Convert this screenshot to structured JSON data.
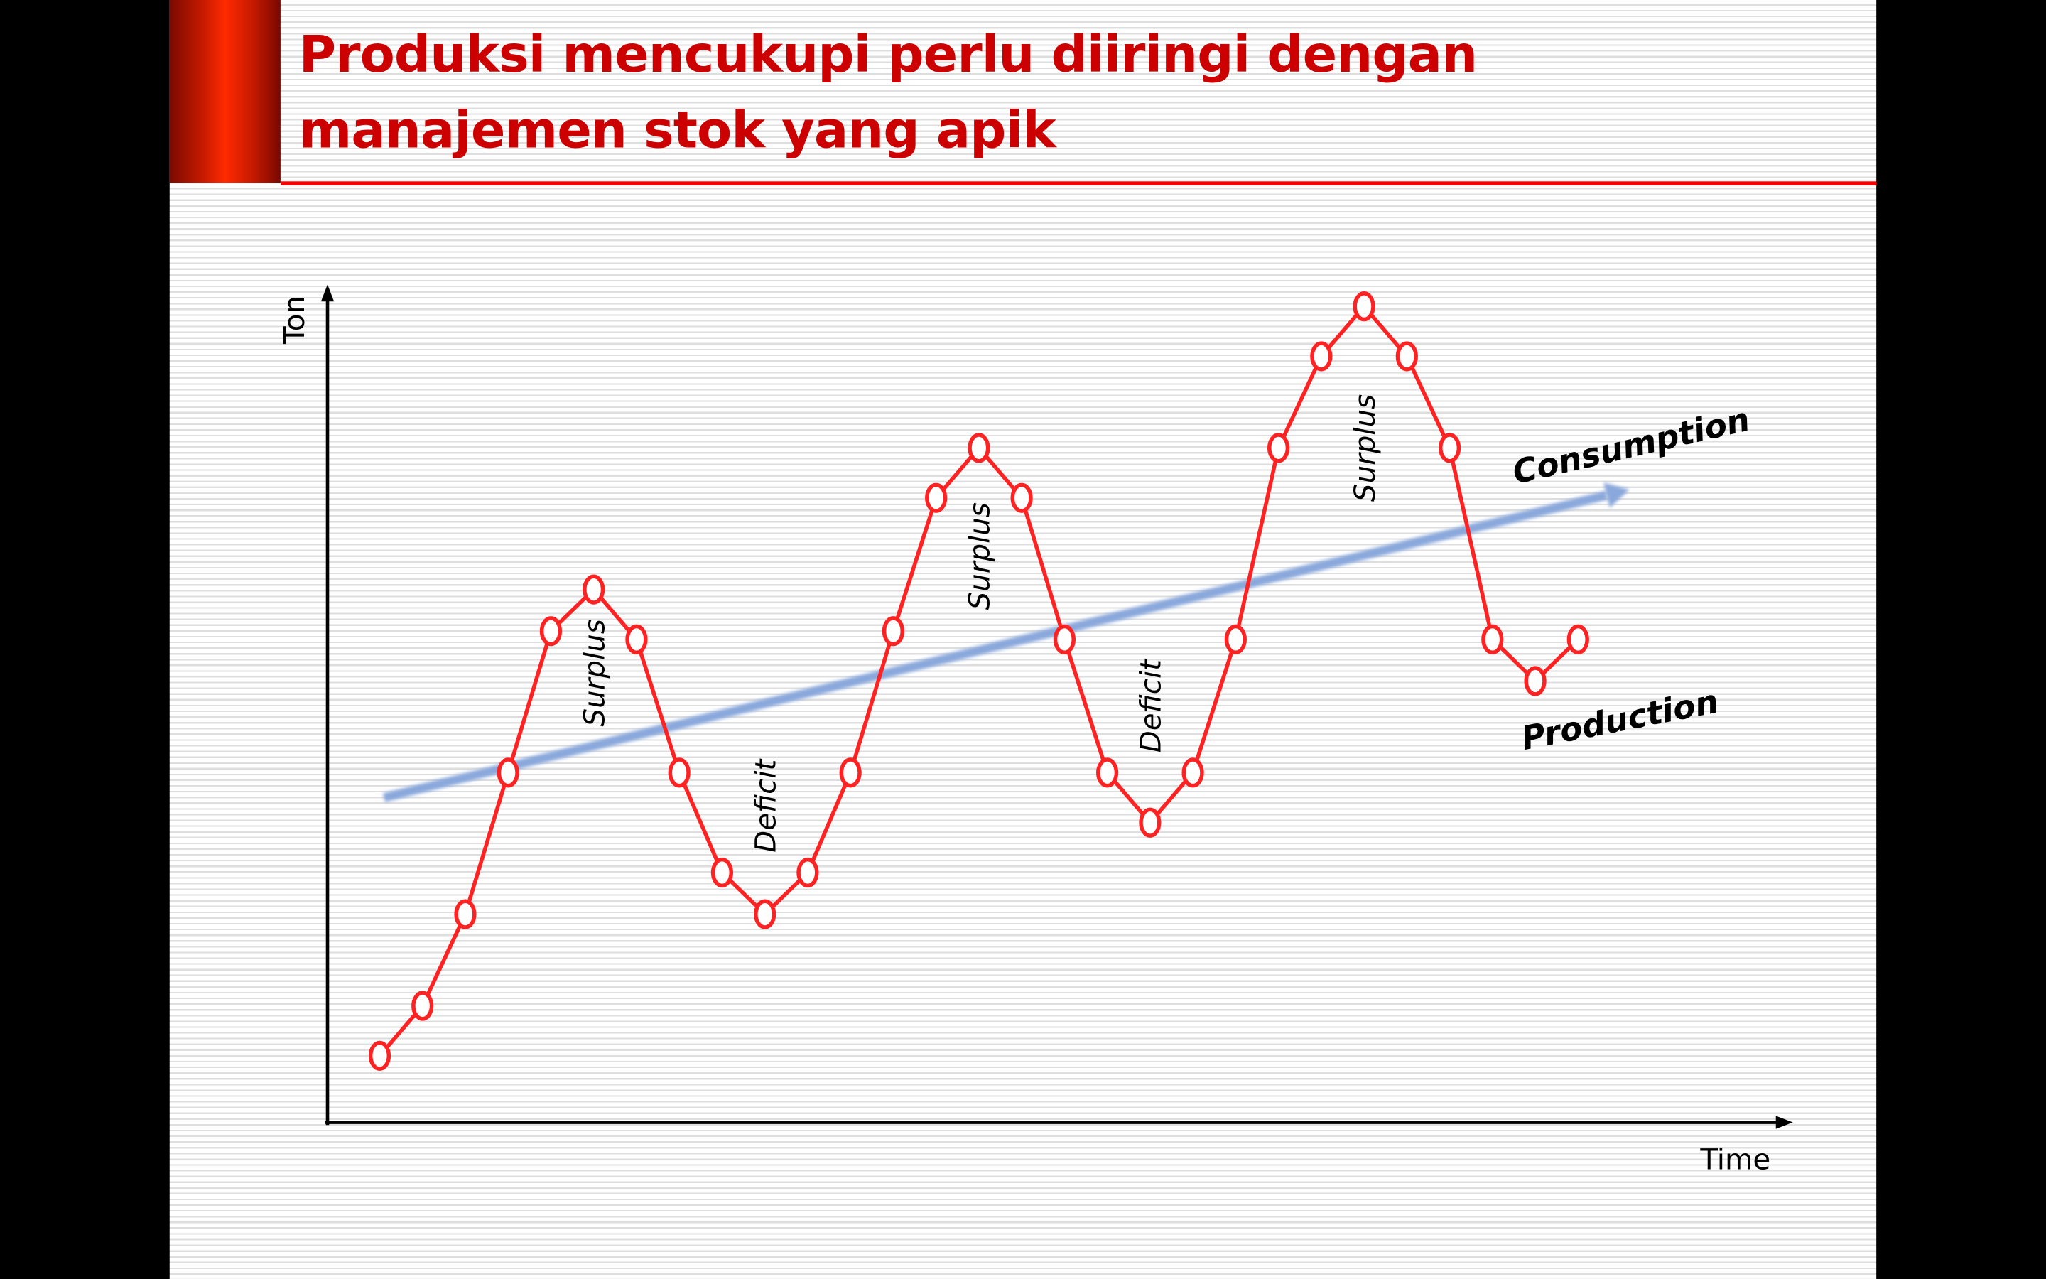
{
  "slide": {
    "title": "Produksi mencukupi perlu diiringi dengan manajemen stok yang apik",
    "title_lines": [
      "Produksi mencukupi perlu diiringi dengan",
      "manajemen stok yang apik"
    ],
    "accent_color": "#cc0000"
  },
  "chart_data": {
    "type": "line",
    "xlabel": "Time",
    "ylabel": "Ton",
    "axis_ticks": false,
    "grid": false,
    "xlim": [
      0,
      33
    ],
    "ylim": [
      0,
      100
    ],
    "series": [
      {
        "name": "Production",
        "color": "#ff2222",
        "marker": "open-circle",
        "x": [
          1,
          2,
          3,
          4,
          5,
          6,
          7,
          8,
          9,
          10,
          11,
          12,
          13,
          14,
          15,
          16,
          17,
          18,
          19,
          20,
          21,
          22,
          23,
          24,
          25,
          26,
          27,
          28,
          29
        ],
        "y": [
          8,
          14,
          25,
          42,
          59,
          64,
          58,
          42,
          30,
          25,
          30,
          42,
          59,
          75,
          81,
          75,
          58,
          42,
          36,
          42,
          58,
          81,
          92,
          98,
          92,
          81,
          58,
          53,
          58
        ]
      },
      {
        "name": "Consumption",
        "color": "#8aa8dc",
        "style": "arrow",
        "x": [
          1.1,
          30.2
        ],
        "y": [
          39,
          76
        ]
      }
    ],
    "annotations": [
      {
        "text": "Surplus",
        "x": 6,
        "y": 54
      },
      {
        "text": "Deficit",
        "x": 10,
        "y": 38
      },
      {
        "text": "Surplus",
        "x": 15,
        "y": 68
      },
      {
        "text": "Deficit",
        "x": 19,
        "y": 50
      },
      {
        "text": "Surplus",
        "x": 24,
        "y": 81
      }
    ],
    "series_labels": {
      "consumption": "Consumption",
      "production": "Production"
    }
  }
}
